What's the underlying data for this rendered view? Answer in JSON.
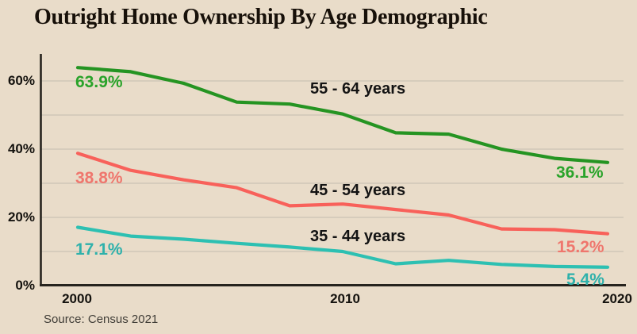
{
  "page": {
    "title": "Outright Home Ownership By Age Demographic",
    "source": "Source: Census 2021"
  },
  "colors": {
    "background": "#e9dcc9",
    "grid": "#ccc3b4",
    "axis": "#26231d",
    "title_text": "#171009",
    "tick_text": "#14120e",
    "series_label_text": "#131313",
    "source_text": "#403d37"
  },
  "chart_data": {
    "type": "line",
    "title": "Outright Home Ownership By Age Demographic",
    "xlabel": "",
    "ylabel": "",
    "x": [
      2000,
      2002,
      2004,
      2006,
      2008,
      2010,
      2012,
      2014,
      2016,
      2018,
      2020
    ],
    "xticks": [
      "2000",
      "2010",
      "2020"
    ],
    "yticks": [
      "0%",
      "20%",
      "40%",
      "60%"
    ],
    "ylim": [
      0,
      67
    ],
    "grid": "horizontal gridlines every 10%",
    "legend": "inline labels above each line",
    "source": "Source: Census 2021",
    "series": [
      {
        "name": "55 - 64 years",
        "color": "#259422",
        "label_color": "#2aa32a",
        "first_value_label": "63.9%",
        "last_value_label": "36.1%",
        "values": [
          63.9,
          62.7,
          59.3,
          53.8,
          53.2,
          50.3,
          44.8,
          44.4,
          40.0,
          37.3,
          36.1
        ]
      },
      {
        "name": "45 - 54 years",
        "color": "#f8615a",
        "label_color": "#ef766d",
        "first_value_label": "38.8%",
        "last_value_label": "15.2%",
        "values": [
          38.8,
          33.8,
          31.0,
          28.7,
          23.4,
          23.9,
          22.3,
          20.7,
          16.6,
          16.4,
          15.2
        ]
      },
      {
        "name": "35 - 44 years",
        "color": "#2dc0b2",
        "label_color": "#2eb1ab",
        "first_value_label": "17.1%",
        "last_value_label": "5.4%",
        "values": [
          17.1,
          14.5,
          13.6,
          12.4,
          11.3,
          10.0,
          6.4,
          7.4,
          6.2,
          5.6,
          5.4
        ]
      }
    ]
  }
}
